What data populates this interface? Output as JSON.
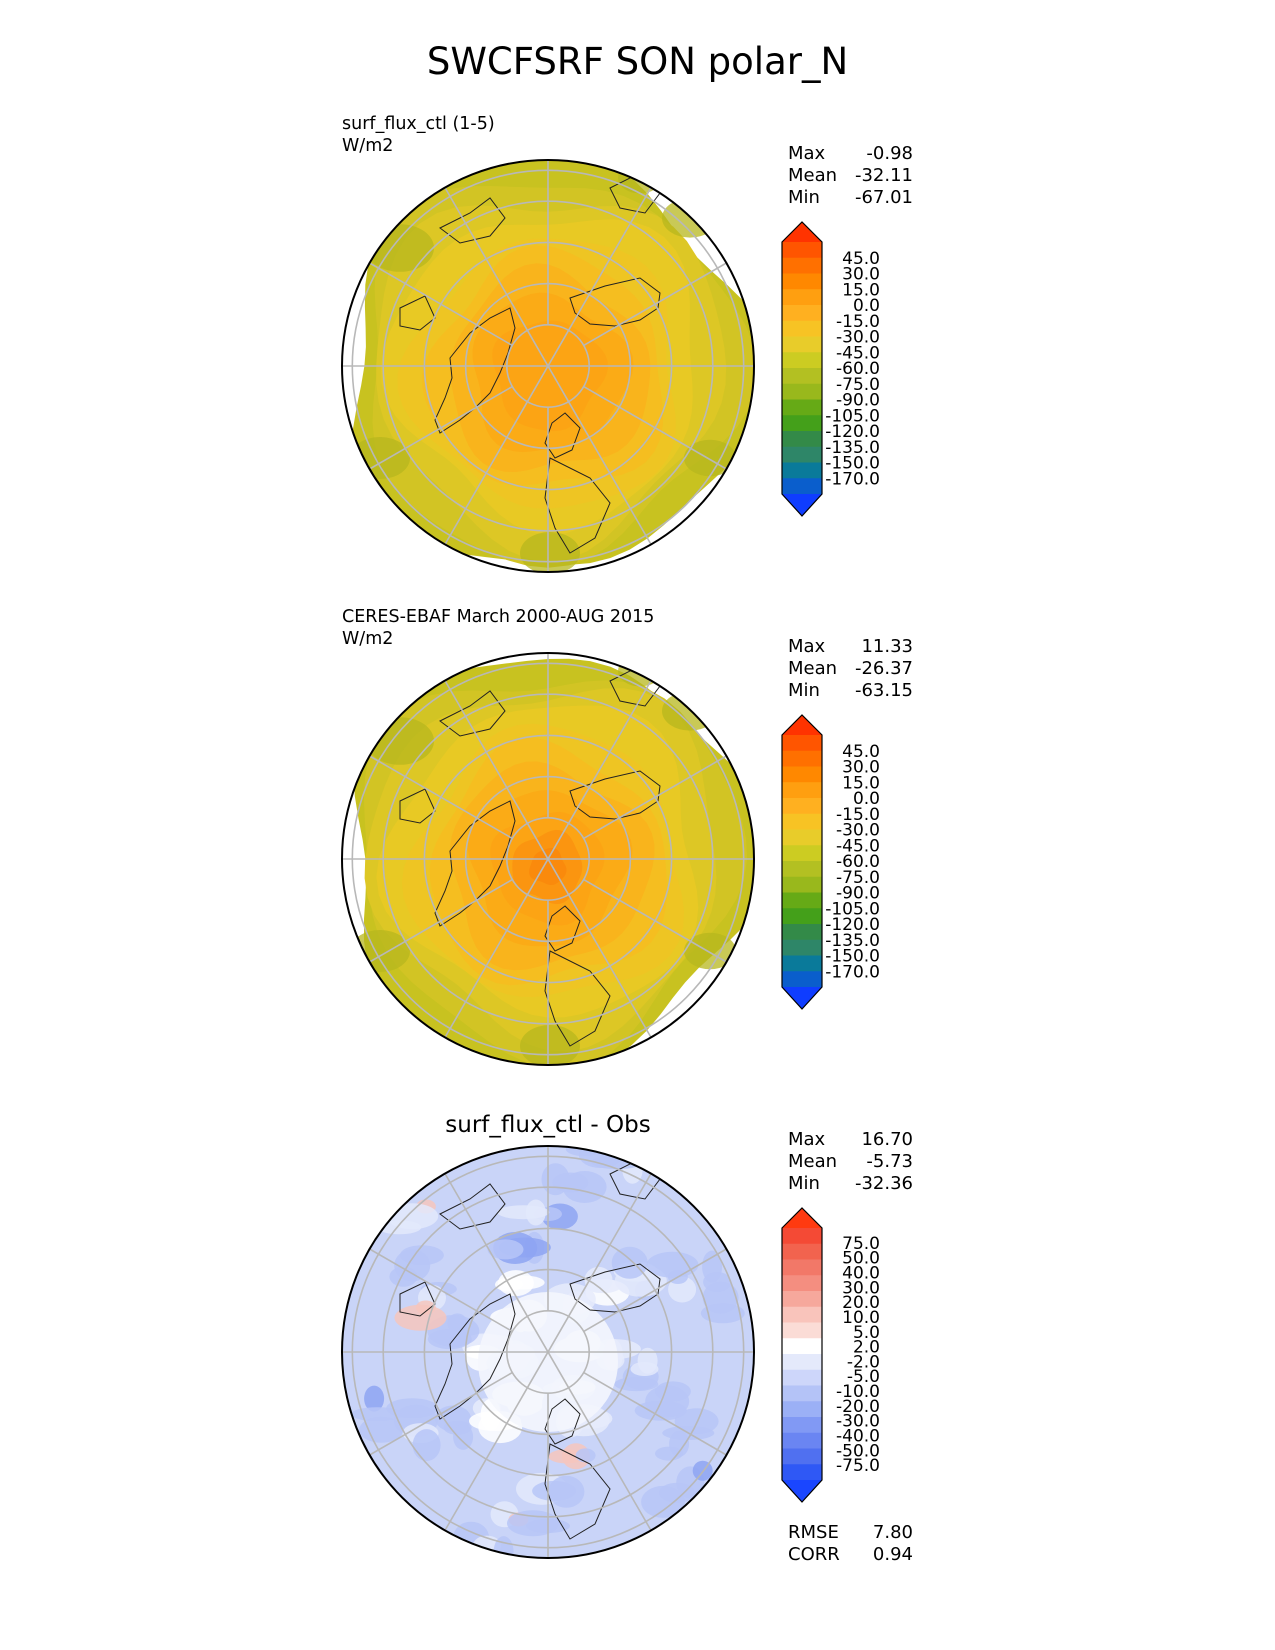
{
  "title": "SWCFSRF SON polar_N",
  "panels": [
    {
      "id": "model",
      "title": "surf_flux_ctl (1-5)",
      "units": "W/m2",
      "stats": [
        {
          "label": "Max",
          "value": "-0.98"
        },
        {
          "label": "Mean",
          "value": "-32.11"
        },
        {
          "label": "Min",
          "value": "-67.01"
        }
      ],
      "colorbar": {
        "labels": [
          "45.0",
          "30.0",
          "15.0",
          "0.0",
          "-15.0",
          "-30.0",
          "-45.0",
          "-60.0",
          "-75.0",
          "-90.0",
          "-105.0",
          "-120.0",
          "-135.0",
          "-150.0",
          "-170.0"
        ],
        "colors": [
          "#ff3300",
          "#ff5500",
          "#ff7000",
          "#ff8800",
          "#ff9f10",
          "#ffb020",
          "#f7c324",
          "#e8cc2a",
          "#cccc22",
          "#b3c022",
          "#99b81c",
          "#66aa16",
          "#44a01a",
          "#338a48",
          "#2e8668",
          "#0a7a9a",
          "#0a5ecc",
          "#0f3dff"
        ]
      },
      "map": {
        "colormap": "full_field",
        "central_value": -37,
        "pole_value": -12
      }
    },
    {
      "id": "obs",
      "title": "CERES-EBAF March 2000-AUG 2015",
      "units": "W/m2",
      "stats": [
        {
          "label": "Max",
          "value": "11.33"
        },
        {
          "label": "Mean",
          "value": "-26.37"
        },
        {
          "label": "Min",
          "value": "-63.15"
        }
      ],
      "colorbar": {
        "labels": [
          "45.0",
          "30.0",
          "15.0",
          "0.0",
          "-15.0",
          "-30.0",
          "-45.0",
          "-60.0",
          "-75.0",
          "-90.0",
          "-105.0",
          "-120.0",
          "-135.0",
          "-150.0",
          "-170.0"
        ],
        "colors": [
          "#ff3300",
          "#ff5500",
          "#ff7000",
          "#ff8800",
          "#ff9f10",
          "#ffb020",
          "#f7c324",
          "#e8cc2a",
          "#cccc22",
          "#b3c022",
          "#99b81c",
          "#66aa16",
          "#44a01a",
          "#338a48",
          "#2e8668",
          "#0a7a9a",
          "#0a5ecc",
          "#0f3dff"
        ]
      },
      "map": {
        "colormap": "full_field",
        "central_value": -30,
        "pole_value": 0
      }
    },
    {
      "id": "diff",
      "title": "surf_flux_ctl - Obs",
      "units": "",
      "stats": [
        {
          "label": "Max",
          "value": "16.70"
        },
        {
          "label": "Mean",
          "value": "-5.73"
        },
        {
          "label": "Min",
          "value": "-32.36"
        }
      ],
      "bottom_stats": [
        {
          "label": "RMSE",
          "value": "7.80"
        },
        {
          "label": "CORR",
          "value": "0.94"
        }
      ],
      "colorbar": {
        "labels": [
          "75.0",
          "50.0",
          "40.0",
          "30.0",
          "20.0",
          "10.0",
          "5.0",
          "2.0",
          "-2.0",
          "-5.0",
          "-10.0",
          "-20.0",
          "-30.0",
          "-40.0",
          "-50.0",
          "-75.0"
        ],
        "colors": [
          "#ff3a10",
          "#f44a35",
          "#f2634e",
          "#f27868",
          "#f48e80",
          "#f6a89c",
          "#f9c4bb",
          "#fbdcd6",
          "#ffffff",
          "#e4e9fb",
          "#cdd6fa",
          "#b4c3f7",
          "#9bb0f6",
          "#8199f4",
          "#6a85f2",
          "#5070f0",
          "#2f58f5",
          "#1a46ff"
        ]
      },
      "map": {
        "colormap": "difference"
      }
    }
  ]
}
